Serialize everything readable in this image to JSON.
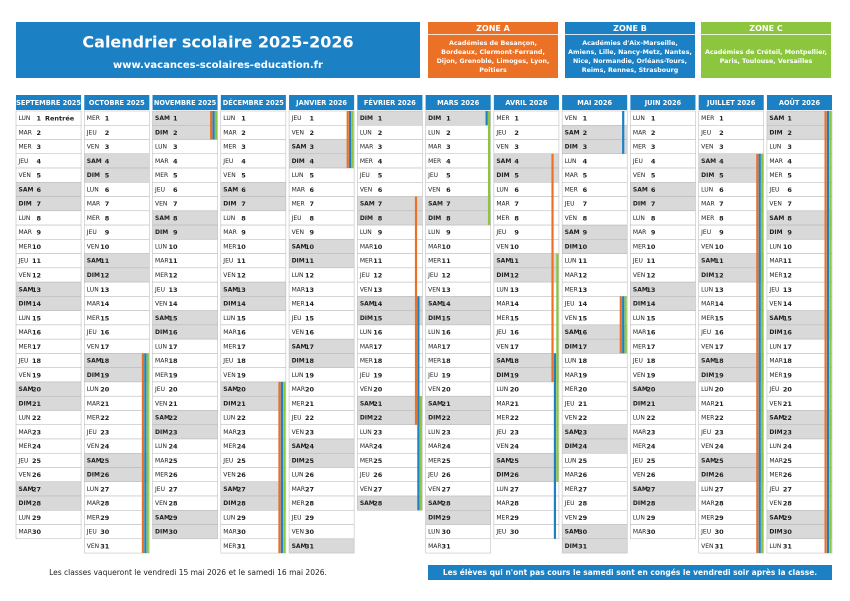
{
  "header": {
    "title": "Calendrier scolaire 2025-2026",
    "url": "www.vacances-scolaires-education.fr"
  },
  "zones": [
    {
      "name": "ZONE A",
      "color": "#ea7125",
      "text": "Académies de Besançon, Bordeaux, Clermont-Ferrand, Dijon, Grenoble, Limoges, Lyon, Poitiers"
    },
    {
      "name": "ZONE B",
      "color": "#1b80c4",
      "text": "Académies d'Aix-Marseille, Amiens, Lille, Nancy-Metz, Nantes, Nice, Normandie, Orléans-Tours, Reims, Rennes, Strasbourg"
    },
    {
      "name": "ZONE C",
      "color": "#8cc63e",
      "text": "Académies de Créteil, Montpellier, Paris, Toulouse, Versailles"
    }
  ],
  "weekdays": [
    "LUN",
    "MAR",
    "MER",
    "JEU",
    "VEN",
    "SAM",
    "DIM"
  ],
  "months": [
    {
      "name": "SEPTEMBRE 2025",
      "start": 0,
      "days": [
        1,
        2,
        3,
        4,
        5,
        6,
        7,
        8,
        9,
        10,
        11,
        12,
        13,
        14,
        15,
        16,
        17,
        18,
        19,
        20,
        21,
        22,
        23,
        24,
        25,
        26,
        27,
        28,
        29,
        30
      ],
      "holidays": [],
      "note": {
        "day": 0,
        "text": "Rentrée"
      }
    },
    {
      "name": "OCTOBRE 2025",
      "start": 2,
      "days": [
        1,
        2,
        3,
        4,
        5,
        6,
        7,
        8,
        9,
        10,
        11,
        12,
        13,
        14,
        15,
        16,
        17,
        18,
        19,
        20,
        21,
        22,
        23,
        24,
        25,
        26,
        27,
        28,
        29,
        30,
        31
      ],
      "holidays": [
        [
          0,
          18,
          31
        ],
        [
          1,
          18,
          31
        ],
        [
          2,
          18,
          31
        ]
      ]
    },
    {
      "name": "NOVEMBRE 2025",
      "start": 5,
      "days": [
        1,
        2,
        3,
        4,
        5,
        6,
        7,
        8,
        9,
        10,
        11,
        12,
        13,
        14,
        15,
        16,
        17,
        18,
        19,
        20,
        21,
        22,
        23,
        24,
        25,
        26,
        27,
        28,
        29,
        30
      ],
      "holidays": [
        [
          0,
          1,
          2
        ],
        [
          1,
          1,
          2
        ],
        [
          2,
          1,
          2
        ]
      ]
    },
    {
      "name": "DÉCEMBRE 2025",
      "start": 0,
      "days": [
        1,
        2,
        3,
        4,
        5,
        6,
        7,
        8,
        9,
        10,
        11,
        12,
        13,
        14,
        15,
        16,
        17,
        18,
        19,
        20,
        21,
        22,
        23,
        24,
        25,
        26,
        27,
        28,
        29,
        30,
        31
      ],
      "holidays": [
        [
          0,
          20,
          31
        ],
        [
          1,
          20,
          31
        ],
        [
          2,
          20,
          31
        ]
      ]
    },
    {
      "name": "JANVIER 2026",
      "start": 3,
      "days": [
        1,
        2,
        3,
        4,
        5,
        6,
        7,
        8,
        9,
        10,
        11,
        12,
        13,
        14,
        15,
        16,
        17,
        18,
        19,
        20,
        21,
        22,
        23,
        24,
        25,
        26,
        27,
        28,
        29,
        30,
        31
      ],
      "holidays": [
        [
          0,
          1,
          4
        ],
        [
          1,
          1,
          4
        ],
        [
          2,
          1,
          4
        ]
      ]
    },
    {
      "name": "FÉVRIER 2026",
      "start": 6,
      "days": [
        1,
        2,
        3,
        4,
        5,
        6,
        7,
        8,
        9,
        10,
        11,
        12,
        13,
        14,
        15,
        16,
        17,
        18,
        19,
        20,
        21,
        22,
        23,
        24,
        25,
        26,
        27,
        28
      ],
      "holidays": [
        [
          0,
          7,
          22
        ],
        [
          1,
          14,
          28
        ],
        [
          2,
          21,
          28
        ]
      ]
    },
    {
      "name": "MARS 2026",
      "start": 6,
      "days": [
        1,
        2,
        3,
        4,
        5,
        6,
        7,
        8,
        9,
        10,
        11,
        12,
        13,
        14,
        15,
        16,
        17,
        18,
        19,
        20,
        21,
        22,
        23,
        24,
        25,
        26,
        27,
        28,
        29,
        30,
        31
      ],
      "holidays": [
        [
          1,
          1,
          1
        ],
        [
          2,
          1,
          8
        ]
      ]
    },
    {
      "name": "AVRIL 2026",
      "start": 2,
      "days": [
        1,
        2,
        3,
        4,
        5,
        6,
        7,
        8,
        9,
        10,
        11,
        12,
        13,
        14,
        15,
        16,
        17,
        18,
        19,
        20,
        21,
        22,
        23,
        24,
        25,
        26,
        27,
        28,
        29,
        30
      ],
      "holidays": [
        [
          0,
          4,
          19
        ],
        [
          1,
          18,
          30
        ],
        [
          2,
          11,
          26
        ]
      ]
    },
    {
      "name": "MAI 2026",
      "start": 4,
      "days": [
        1,
        2,
        3,
        4,
        5,
        6,
        7,
        8,
        9,
        10,
        11,
        12,
        13,
        14,
        15,
        16,
        17,
        18,
        19,
        20,
        21,
        22,
        23,
        24,
        25,
        26,
        27,
        28,
        29,
        30,
        31
      ],
      "holidays": [
        [
          1,
          1,
          3
        ],
        [
          0,
          14,
          17
        ],
        [
          1,
          14,
          17
        ],
        [
          2,
          14,
          17
        ]
      ]
    },
    {
      "name": "JUIN 2026",
      "start": 0,
      "days": [
        1,
        2,
        3,
        4,
        5,
        6,
        7,
        8,
        9,
        10,
        11,
        12,
        13,
        14,
        15,
        16,
        17,
        18,
        19,
        20,
        21,
        22,
        23,
        24,
        25,
        26,
        27,
        28,
        29,
        30
      ],
      "holidays": []
    },
    {
      "name": "JUILLET 2026",
      "start": 2,
      "days": [
        1,
        2,
        3,
        4,
        5,
        6,
        7,
        8,
        9,
        10,
        11,
        12,
        13,
        14,
        15,
        16,
        17,
        18,
        19,
        20,
        21,
        22,
        23,
        24,
        25,
        26,
        27,
        28,
        29,
        30,
        31
      ],
      "holidays": [
        [
          0,
          4,
          31
        ],
        [
          1,
          4,
          31
        ],
        [
          2,
          4,
          31
        ]
      ]
    },
    {
      "name": "AOÛT 2026",
      "start": 5,
      "days": [
        1,
        2,
        3,
        4,
        5,
        6,
        7,
        8,
        9,
        10,
        11,
        12,
        13,
        14,
        15,
        16,
        17,
        18,
        19,
        20,
        21,
        22,
        23,
        24,
        25,
        26,
        27,
        28,
        29,
        30,
        31
      ],
      "holidays": [
        [
          0,
          1,
          31
        ],
        [
          1,
          1,
          31
        ],
        [
          2,
          1,
          31
        ]
      ]
    }
  ],
  "footer": {
    "left": "Les classes vaqueront le vendredi 15 mai 2026 et le samedi 16 mai 2026.",
    "right": "Les élèves qui n'ont pas cours le samedi sont en congés le vendredi soir après la classe."
  }
}
